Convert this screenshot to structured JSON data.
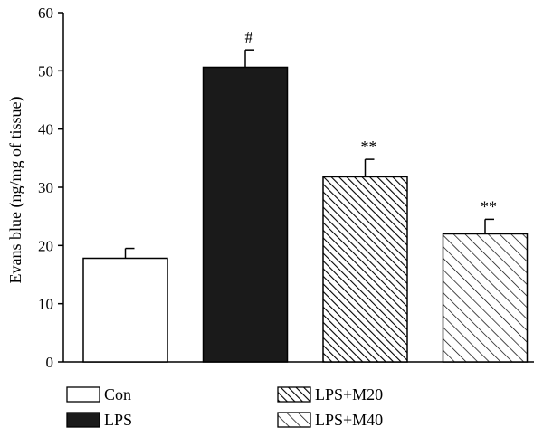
{
  "chart_data": {
    "type": "bar",
    "title": "",
    "xlabel": "",
    "ylabel": "Evans blue (ng/mg of tissue)",
    "ylim": [
      0,
      60
    ],
    "yticks": [
      0,
      10,
      20,
      30,
      40,
      50,
      60
    ],
    "categories": [
      "Con",
      "LPS",
      "LPS+M20",
      "LPS+M40"
    ],
    "values": [
      17.8,
      50.6,
      31.8,
      22.0
    ],
    "errors": [
      1.7,
      3.0,
      3.0,
      2.5
    ],
    "annotations": [
      "",
      "#",
      "**",
      "**"
    ],
    "fills": [
      "white",
      "black",
      "dense-hatch",
      "sparse-hatch"
    ],
    "grid": false,
    "legend": {
      "placement": "bottom",
      "entries": [
        "Con",
        "LPS",
        "LPS+M20",
        "LPS+M40"
      ]
    }
  }
}
